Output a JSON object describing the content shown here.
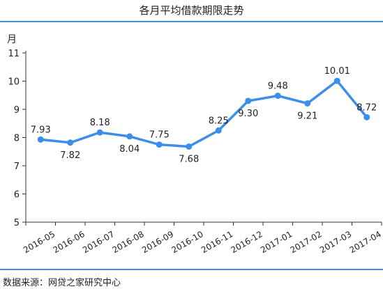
{
  "header": {
    "title": "各月平均借款期限走势"
  },
  "footer": {
    "source": "数据来源：网贷之家研究中心"
  },
  "colors": {
    "series": "#3c8ee8",
    "axis": "#333333",
    "rule": "#4a90d9"
  },
  "chart_data": {
    "type": "line",
    "title": "各月平均借款期限走势",
    "ylabel": "月",
    "xlabel": "",
    "ylim": [
      5,
      11
    ],
    "yticks": [
      5,
      6,
      7,
      8,
      9,
      10,
      11
    ],
    "grid": false,
    "categories": [
      "2016-05",
      "2016-06",
      "2016-07",
      "2016-08",
      "2016-09",
      "2016-10",
      "2016-11",
      "2016-12",
      "2017-01",
      "2017-02",
      "2017-03",
      "2017-04"
    ],
    "series": [
      {
        "values": [
          7.93,
          7.82,
          8.18,
          8.04,
          7.75,
          7.68,
          8.25,
          9.3,
          9.48,
          9.21,
          10.01,
          8.72
        ]
      }
    ],
    "data_labels": [
      "7.93",
      "7.82",
      "8.18",
      "8.04",
      "7.75",
      "7.68",
      "8.25",
      "9.30",
      "9.48",
      "9.21",
      "10.01",
      "8.72"
    ]
  }
}
